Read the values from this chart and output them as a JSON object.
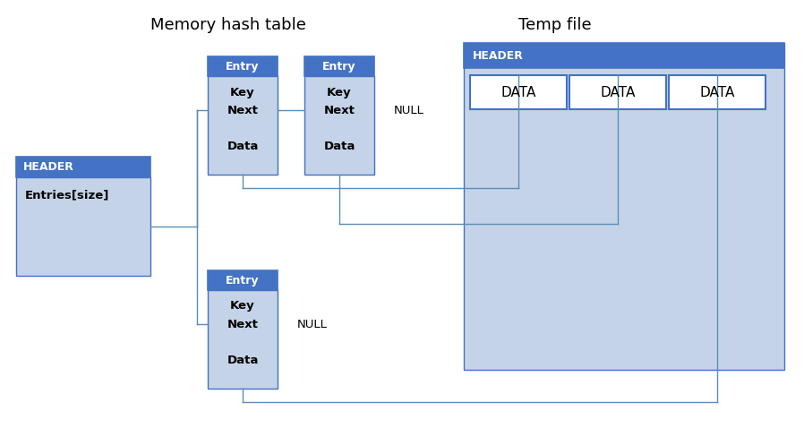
{
  "title_memory": "Memory hash table",
  "title_temp": "Temp file",
  "header_color": "#4472C4",
  "header_text_color": "#FFFFFF",
  "body_color": "#C5D3E8",
  "box_border_color": "#4472C4",
  "data_box_color": "#FFFFFF",
  "text_color": "#000000",
  "bg_color": "#FFFFFF",
  "line_color": "#5B8DB8",
  "entry_header_text": "Entry",
  "header_text": "HEADER",
  "entries_text": "Entries[size]",
  "data_text": "DATA",
  "key_text": "Key",
  "next_text": "Next",
  "data_field_text": "Data",
  "null_text": "NULL",
  "title_fontsize": 13,
  "label_fontsize": 9.5,
  "header_fontsize": 9,
  "data_fontsize": 11
}
